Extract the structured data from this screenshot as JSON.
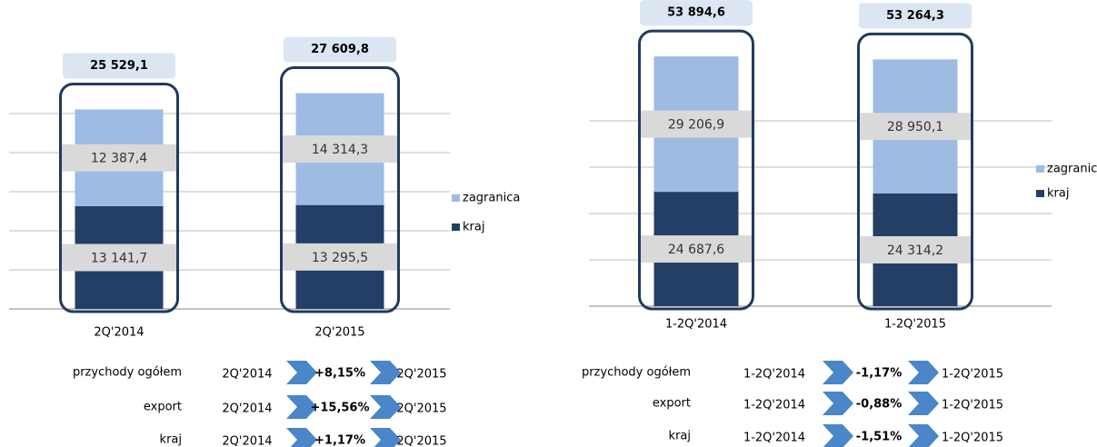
{
  "chart_data": [
    {
      "type": "stacked-bar",
      "categories": [
        "2Q'2014",
        "2Q'2015"
      ],
      "series": [
        {
          "name": "kraj",
          "color": "#243f66",
          "values": [
            13141.7,
            13295.5
          ],
          "value_labels": [
            "13 141,7",
            "13 295,5"
          ]
        },
        {
          "name": "zagranica",
          "color": "#9dbbe3",
          "values": [
            12387.4,
            14314.3
          ],
          "value_labels": [
            "12 387,4",
            "14 314,3"
          ]
        }
      ],
      "totals": {
        "values": [
          25529.1,
          27609.8
        ],
        "value_labels": [
          "25 529,1",
          "27 609,8"
        ]
      },
      "ylim": [
        0,
        30000
      ],
      "yticks": [
        0,
        5000,
        10000,
        15000,
        20000,
        25000
      ],
      "grid": true,
      "comparisons": [
        {
          "name": "przychody ogółem",
          "from": "2Q'2014",
          "value": 8.15,
          "value_label": "+8,15%",
          "to": "2Q'2015"
        },
        {
          "name": "export",
          "from": "2Q'2014",
          "value": 15.56,
          "value_label": "+15,56%",
          "to": "2Q'2015"
        },
        {
          "name": "kraj",
          "from": "2Q'2014",
          "value": 1.17,
          "value_label": "+1,17%",
          "to": "2Q'2015"
        }
      ]
    },
    {
      "type": "stacked-bar",
      "categories": [
        "1-2Q'2014",
        "1-2Q'2015"
      ],
      "series": [
        {
          "name": "kraj",
          "color": "#243f66",
          "values": [
            24687.6,
            24314.2
          ],
          "value_labels": [
            "24 687,6",
            "24 314,2"
          ]
        },
        {
          "name": "zagranica",
          "color": "#9dbbe3",
          "values": [
            29206.9,
            28950.1
          ],
          "value_labels": [
            "29 206,9",
            "28 950,1"
          ]
        }
      ],
      "totals": {
        "values": [
          53894.6,
          53264.3
        ],
        "value_labels": [
          "53 894,6",
          "53 264,3"
        ]
      },
      "ylim": [
        0,
        60000
      ],
      "yticks": [
        0,
        10000,
        20000,
        30000,
        40000
      ],
      "grid": true,
      "comparisons": [
        {
          "name": "przychody ogółem",
          "from": "1-2Q'2014",
          "value": -1.17,
          "value_label": "-1,17%",
          "to": "1-2Q'2015"
        },
        {
          "name": "export",
          "from": "1-2Q'2014",
          "value": -0.88,
          "value_label": "-0,88%",
          "to": "1-2Q'2015"
        },
        {
          "name": "kraj",
          "from": "1-2Q'2014",
          "value": -1.51,
          "value_label": "-1,51%",
          "to": "1-2Q'2015"
        }
      ]
    }
  ]
}
